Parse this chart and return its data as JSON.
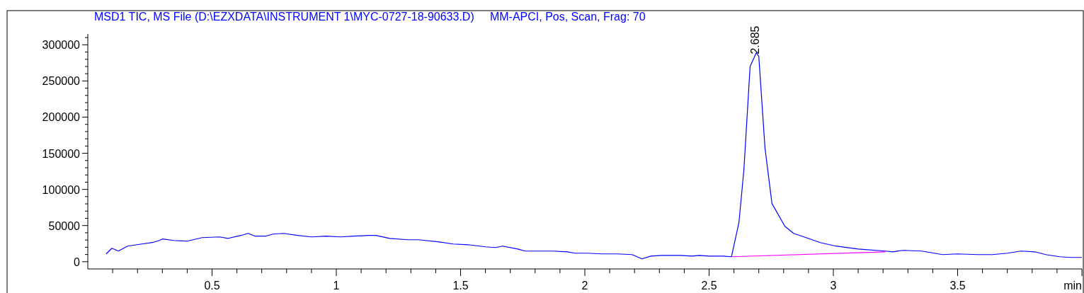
{
  "chart_data": {
    "type": "line",
    "title": "MSD1 TIC, MS File (D:\\EZXDATA\\INSTRUMENT 1\\MYC-0727-18-90633.D)     MM-APCI, Pos, Scan, Frag: 70",
    "xlim": [
      0,
      4
    ],
    "ylim": [
      -10000,
      315000
    ],
    "xticks": [
      {
        "value": 0.1,
        "label": null
      },
      {
        "value": 0.2,
        "label": null
      },
      {
        "value": 0.3,
        "label": null
      },
      {
        "value": 0.4,
        "label": null
      },
      0.5,
      {
        "value": 0.6,
        "label": null
      },
      {
        "value": 0.7,
        "label": null
      },
      {
        "value": 0.8,
        "label": null
      },
      {
        "value": 0.9,
        "label": null
      },
      1,
      {
        "value": 1.1,
        "label": null
      },
      {
        "value": 1.2,
        "label": null
      },
      {
        "value": 1.3,
        "label": null
      },
      {
        "value": 1.4,
        "label": null
      },
      1.5,
      {
        "value": 1.6,
        "label": null
      },
      {
        "value": 1.7,
        "label": null
      },
      {
        "value": 1.8,
        "label": null
      },
      {
        "value": 1.9,
        "label": null
      },
      2,
      {
        "value": 2.1,
        "label": null
      },
      {
        "value": 2.2,
        "label": null
      },
      {
        "value": 2.3,
        "label": null
      },
      {
        "value": 2.4,
        "label": null
      },
      2.5,
      {
        "value": 2.6,
        "label": null
      },
      {
        "value": 2.7,
        "label": null
      },
      {
        "value": 2.8,
        "label": null
      },
      {
        "value": 2.9,
        "label": null
      },
      3,
      {
        "value": 3.1,
        "label": null
      },
      {
        "value": 3.2,
        "label": null
      },
      {
        "value": 3.3,
        "label": null
      },
      {
        "value": 3.4,
        "label": null
      },
      3.5,
      {
        "value": 3.6,
        "label": null
      },
      {
        "value": 3.7,
        "label": null
      },
      {
        "value": 3.8,
        "label": null
      },
      {
        "value": 3.9,
        "label": null
      },
      {
        "value": 4,
        "label": "min"
      }
    ],
    "yticks": [
      0,
      {
        "value": 10000,
        "label": null
      },
      {
        "value": 20000,
        "label": null
      },
      {
        "value": 30000,
        "label": null
      },
      {
        "value": 40000,
        "label": null
      },
      50000,
      {
        "value": 60000,
        "label": null
      },
      {
        "value": 70000,
        "label": null
      },
      {
        "value": 80000,
        "label": null
      },
      {
        "value": 90000,
        "label": null
      },
      100000,
      {
        "value": 110000,
        "label": null
      },
      {
        "value": 120000,
        "label": null
      },
      {
        "value": 130000,
        "label": null
      },
      {
        "value": 140000,
        "label": null
      },
      150000,
      {
        "value": 160000,
        "label": null
      },
      {
        "value": 170000,
        "label": null
      },
      {
        "value": 180000,
        "label": null
      },
      {
        "value": 190000,
        "label": null
      },
      200000,
      {
        "value": 210000,
        "label": null
      },
      {
        "value": 220000,
        "label": null
      },
      {
        "value": 230000,
        "label": null
      },
      {
        "value": 240000,
        "label": null
      },
      250000,
      {
        "value": 260000,
        "label": null
      },
      {
        "value": 270000,
        "label": null
      },
      {
        "value": 280000,
        "label": null
      },
      {
        "value": 290000,
        "label": null
      },
      300000,
      {
        "value": 310000,
        "label": null
      }
    ],
    "grid": false,
    "marker": "none",
    "line_style": "solid",
    "annotations": [
      {
        "text": "2.685",
        "x": 2.685,
        "y": 289000
      }
    ],
    "series": [
      {
        "color": "#0000ff",
        "x": [
          0.074,
          0.097,
          0.123,
          0.16,
          0.217,
          0.26,
          0.288,
          0.3,
          0.345,
          0.4,
          0.46,
          0.53,
          0.565,
          0.616,
          0.645,
          0.673,
          0.716,
          0.745,
          0.787,
          0.845,
          0.9,
          0.96,
          1.016,
          1.07,
          1.13,
          1.16,
          1.215,
          1.287,
          1.33,
          1.415,
          1.47,
          1.53,
          1.6,
          1.64,
          1.67,
          1.73,
          1.76,
          1.81,
          1.87,
          1.93,
          1.96,
          2.01,
          2.07,
          2.13,
          2.19,
          2.23,
          2.265,
          2.31,
          2.385,
          2.43,
          2.46,
          2.5,
          2.556,
          2.59,
          2.62,
          2.64,
          2.665,
          2.69,
          2.7,
          2.725,
          2.753,
          2.805,
          2.84,
          2.89,
          2.947,
          3.01,
          3.1,
          3.21,
          3.24,
          3.28,
          3.355,
          3.44,
          3.5,
          3.58,
          3.64,
          3.7,
          3.755,
          3.81,
          3.855,
          3.91,
          3.955,
          4.0
        ],
        "values": [
          10800,
          18600,
          14700,
          21600,
          24500,
          26500,
          29400,
          31400,
          29400,
          28400,
          33300,
          34300,
          32300,
          36300,
          39200,
          35300,
          35300,
          38200,
          39200,
          36300,
          34300,
          35300,
          34300,
          35300,
          36300,
          36300,
          32300,
          30400,
          30400,
          27400,
          24500,
          23500,
          20600,
          19600,
          21600,
          17600,
          14700,
          14700,
          14700,
          13700,
          11800,
          11800,
          10800,
          10800,
          9800,
          3900,
          7800,
          8800,
          8800,
          7800,
          8800,
          7800,
          7800,
          6900,
          53900,
          127000,
          270000,
          289000,
          284000,
          157000,
          80400,
          49000,
          39200,
          33300,
          26500,
          21600,
          17600,
          14700,
          13700,
          15700,
          14700,
          9800,
          10800,
          9800,
          9800,
          11800,
          14700,
          13700,
          9800,
          6900,
          5900,
          5900
        ]
      },
      {
        "color": "#ff00ff",
        "x": [
          2.59,
          3.21
        ],
        "values": [
          6900,
          13700
        ]
      }
    ]
  }
}
